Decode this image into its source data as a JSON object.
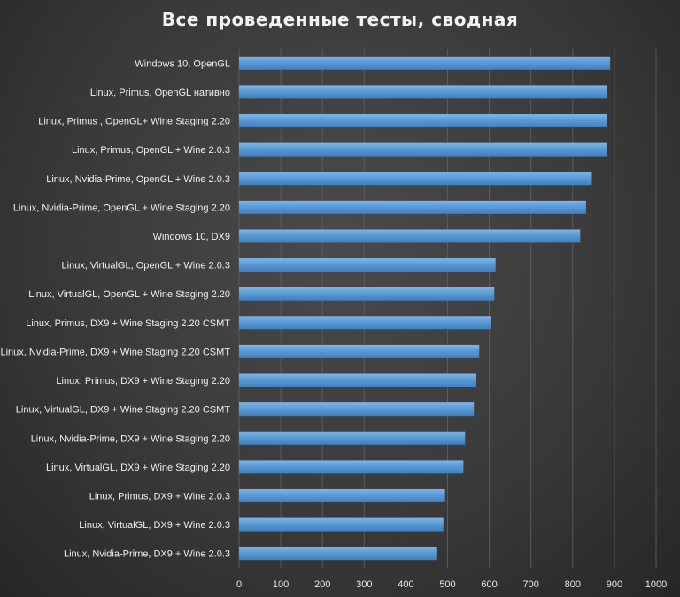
{
  "chart_data": {
    "type": "bar",
    "orientation": "horizontal",
    "title": "Все проведенные тесты, сводная",
    "xlabel": "",
    "ylabel": "",
    "xlim": [
      0,
      1000
    ],
    "xticks": [
      0,
      100,
      200,
      300,
      400,
      500,
      600,
      700,
      800,
      900,
      1000
    ],
    "grid": true,
    "bar_color": "#5b9bd5",
    "categories": [
      "Windows 10, OpenGL",
      "Linux, Primus, OpenGL нативно",
      "Linux, Primus , OpenGL+ Wine Staging 2.20",
      "Linux, Primus, OpenGL + Wine 2.0.3",
      "Linux, Nvidia-Prime, OpenGL + Wine 2.0.3",
      "Linux, Nvidia-Prime, OpenGL + Wine Staging 2.20",
      "Windows 10, DX9",
      "Linux, VirtualGL, OpenGL + Wine 2.0.3",
      "Linux, VirtualGL, OpenGL + Wine Staging 2.20",
      "Linux, Primus, DX9 + Wine Staging 2.20 CSMT",
      "Linux, Nvidia-Prime, DX9 + Wine Staging 2.20 CSMT",
      "Linux, Primus, DX9 + Wine Staging 2.20",
      "Linux, VirtualGL, DX9 + Wine Staging 2.20 CSMT",
      "Linux, Nvidia-Prime, DX9 + Wine Staging 2.20",
      "Linux, VirtualGL, DX9 + Wine Staging 2.20",
      "Linux, Primus, DX9 + Wine 2.0.3",
      "Linux, VirtualGL, DX9 + Wine 2.0.3",
      "Linux, Nvidia-Prime, DX9 + Wine 2.0.3"
    ],
    "values": [
      890,
      882,
      882,
      882,
      846,
      832,
      818,
      615,
      612,
      604,
      576,
      569,
      563,
      542,
      538,
      494,
      490,
      473
    ]
  }
}
